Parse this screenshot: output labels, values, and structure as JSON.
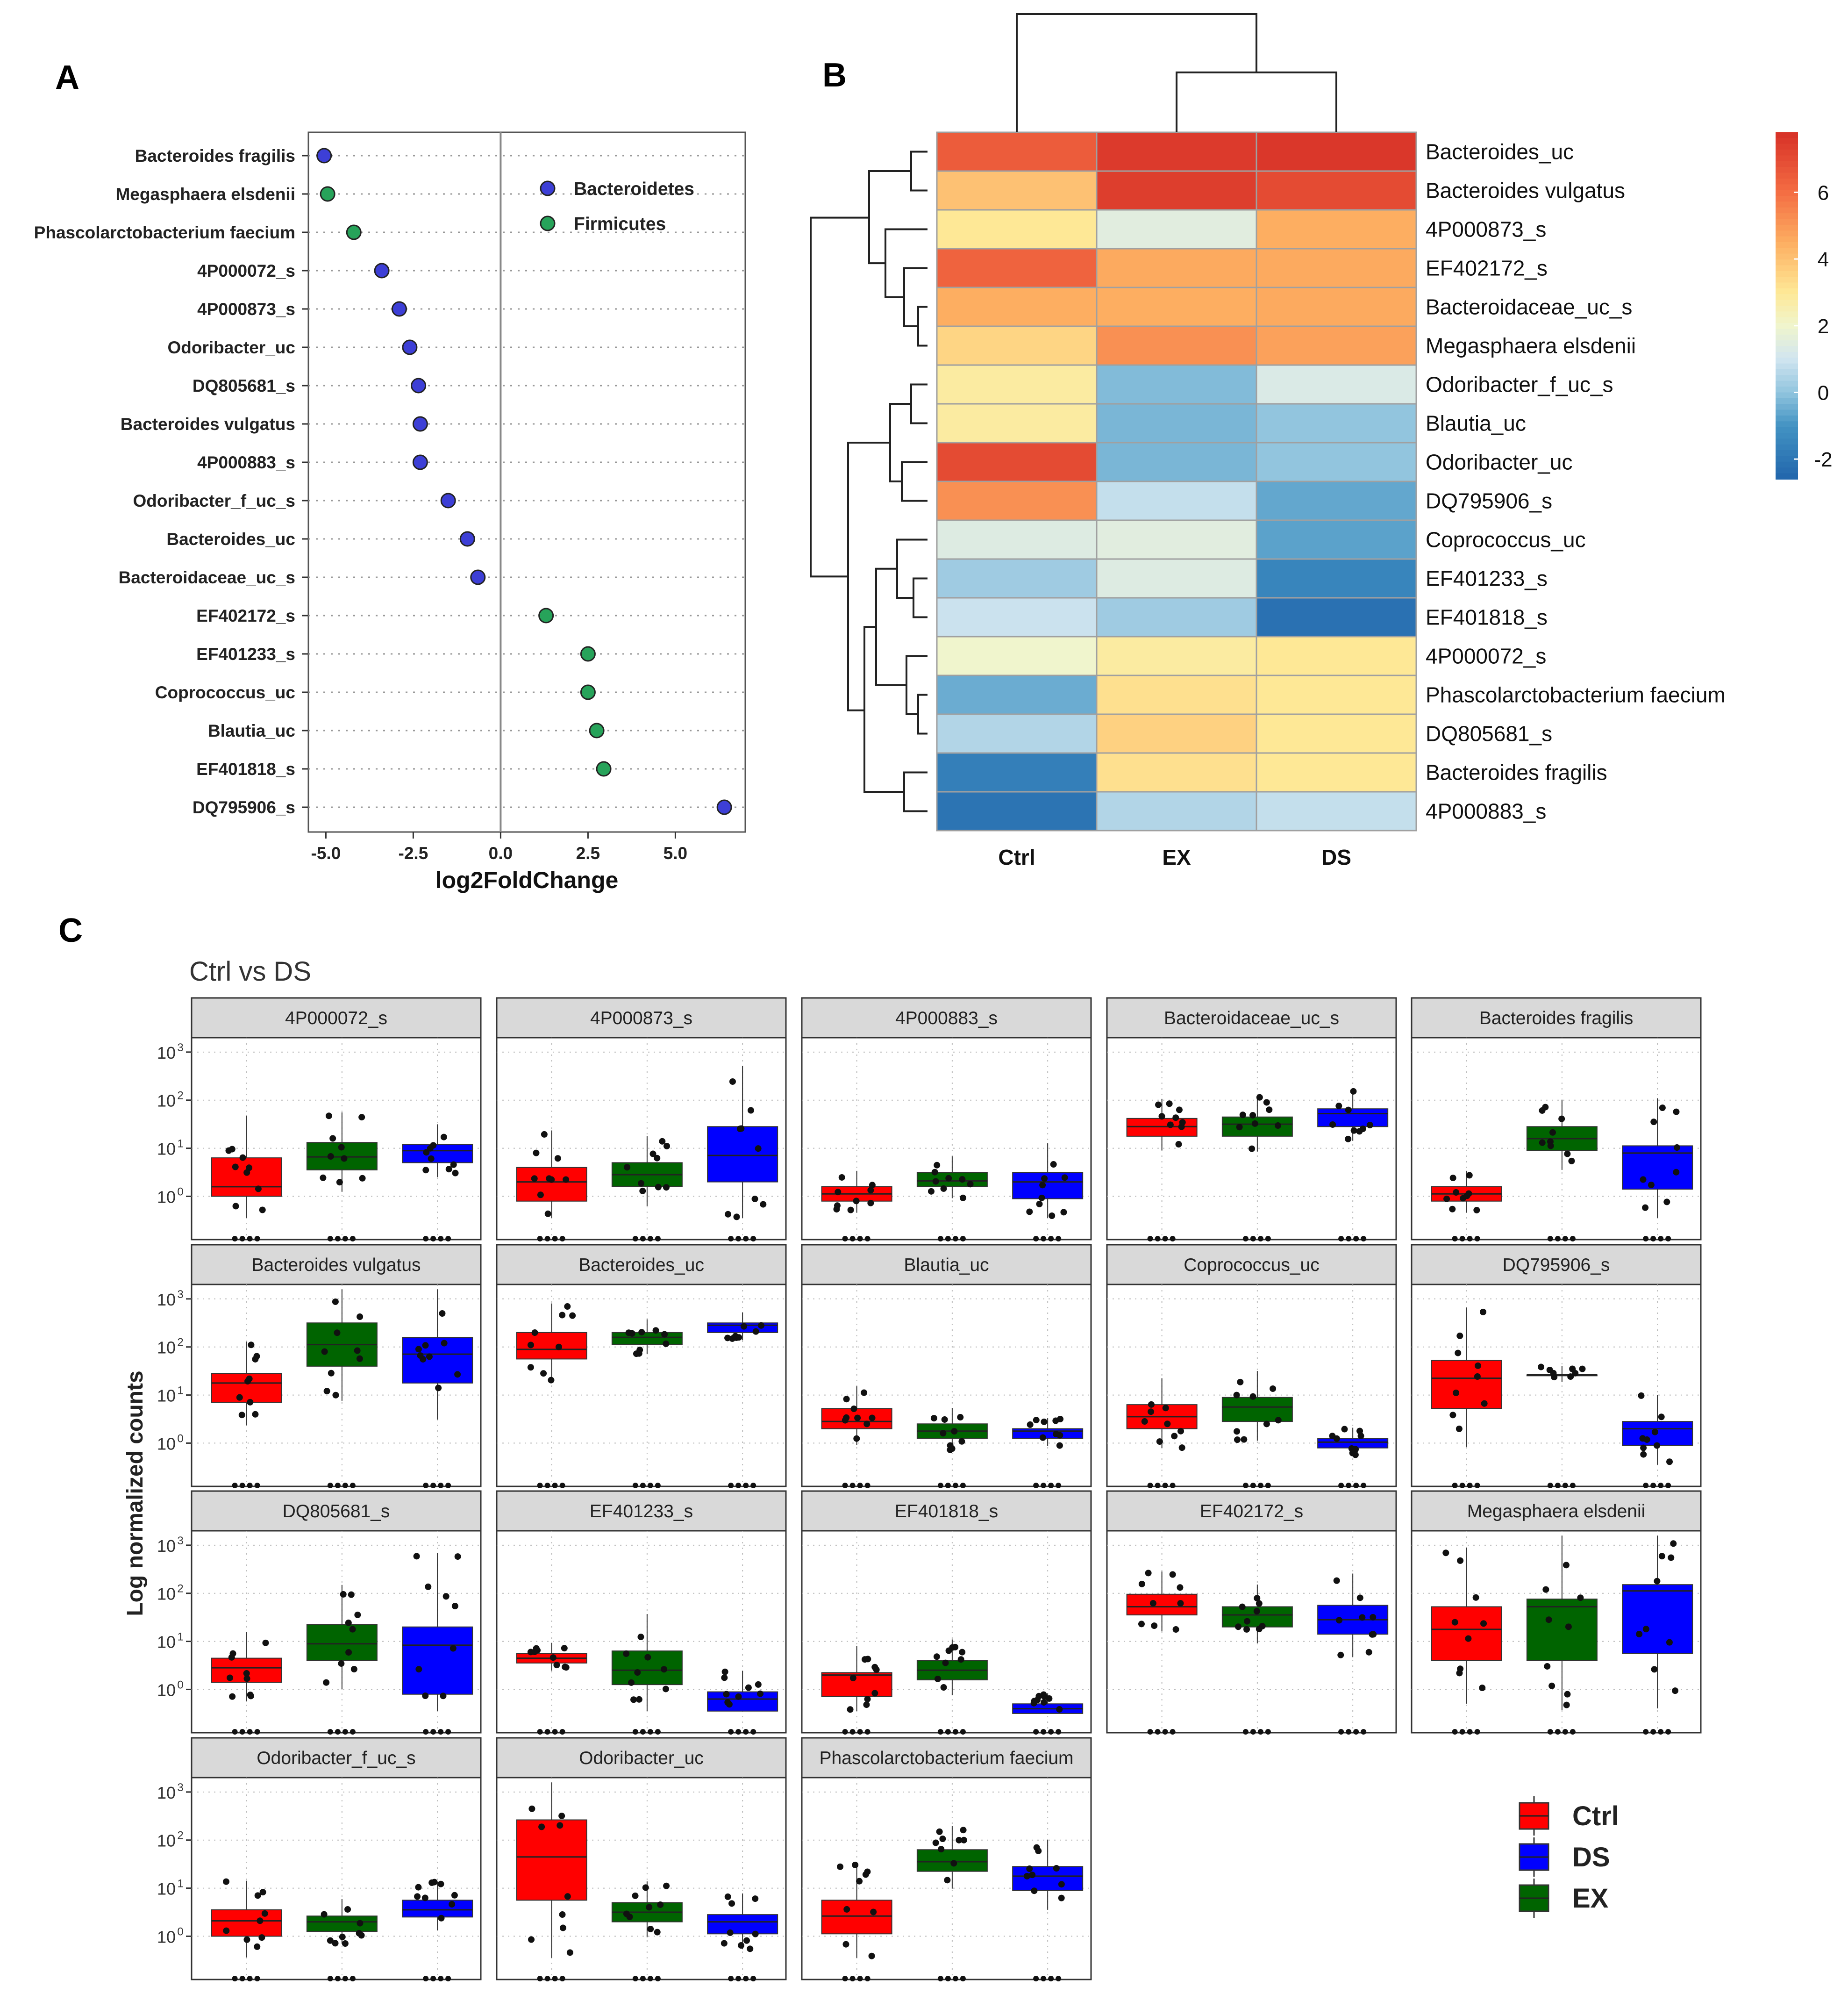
{
  "chart_data": [
    {
      "panel": "A",
      "type": "scatter",
      "title": "",
      "xlabel": "log2FoldChange",
      "ylabel": "",
      "xlim": [
        -5.5,
        7.0
      ],
      "xticks": [
        "-5.0",
        "-2.5",
        "0.0",
        "2.5",
        "5.0"
      ],
      "xtick_values": [
        -5.0,
        -2.5,
        0.0,
        2.5,
        5.0
      ],
      "legend": [
        {
          "label": "Bacteroidetes",
          "color": "#3d3fd6"
        },
        {
          "label": "Firmicutes",
          "color": "#27a35a"
        }
      ],
      "points": [
        {
          "label": "Bacteroides fragilis",
          "x": -5.05,
          "group": "Bacteroidetes"
        },
        {
          "label": "Megasphaera elsdenii",
          "x": -4.95,
          "group": "Firmicutes"
        },
        {
          "label": "Phascolarctobacterium faecium",
          "x": -4.2,
          "group": "Firmicutes"
        },
        {
          "label": "4P000072_s",
          "x": -3.4,
          "group": "Bacteroidetes"
        },
        {
          "label": "4P000873_s",
          "x": -2.9,
          "group": "Bacteroidetes"
        },
        {
          "label": "Odoribacter_uc",
          "x": -2.6,
          "group": "Bacteroidetes"
        },
        {
          "label": "DQ805681_s",
          "x": -2.35,
          "group": "Bacteroidetes"
        },
        {
          "label": "Bacteroides vulgatus",
          "x": -2.3,
          "group": "Bacteroidetes"
        },
        {
          "label": "4P000883_s",
          "x": -2.3,
          "group": "Bacteroidetes"
        },
        {
          "label": "Odoribacter_f_uc_s",
          "x": -1.5,
          "group": "Bacteroidetes"
        },
        {
          "label": "Bacteroides_uc",
          "x": -0.95,
          "group": "Bacteroidetes"
        },
        {
          "label": "Bacteroidaceae_uc_s",
          "x": -0.65,
          "group": "Bacteroidetes"
        },
        {
          "label": "EF402172_s",
          "x": 1.3,
          "group": "Firmicutes"
        },
        {
          "label": "EF401233_s",
          "x": 2.5,
          "group": "Firmicutes"
        },
        {
          "label": "Coprococcus_uc",
          "x": 2.5,
          "group": "Firmicutes"
        },
        {
          "label": "Blautia_uc",
          "x": 2.75,
          "group": "Firmicutes"
        },
        {
          "label": "EF401818_s",
          "x": 2.95,
          "group": "Firmicutes"
        },
        {
          "label": "DQ795906_s",
          "x": 6.4,
          "group": "Bacteroidetes"
        }
      ]
    },
    {
      "panel": "B",
      "type": "heatmap",
      "columns": [
        "Ctrl",
        "EX",
        "DS"
      ],
      "rows": [
        "Bacteroides_uc",
        "Bacteroides vulgatus",
        "4P000873_s",
        "EF402172_s",
        "Bacteroidaceae_uc_s",
        "Megasphaera elsdenii",
        "Odoribacter_f_uc_s",
        "Blautia_uc",
        "Odoribacter_uc",
        "DQ795906_s",
        "Coprococcus_uc",
        "EF401233_s",
        "EF401818_s",
        "4P000072_s",
        "Phascolarctobacterium faecium",
        "DQ805681_s",
        "Bacteroides fragilis",
        "4P000883_s"
      ],
      "values": [
        [
          6.5,
          7.5,
          7.6
        ],
        [
          4.0,
          7.4,
          7.0
        ],
        [
          3.0,
          1.5,
          4.5
        ],
        [
          6.3,
          4.6,
          4.6
        ],
        [
          4.5,
          4.5,
          4.6
        ],
        [
          3.5,
          5.2,
          4.8
        ],
        [
          2.8,
          -0.2,
          1.3
        ],
        [
          2.8,
          -0.3,
          0.0
        ],
        [
          7.0,
          -0.3,
          0.0
        ],
        [
          5.2,
          0.8,
          -0.6
        ],
        [
          1.4,
          1.5,
          -0.7
        ],
        [
          0.2,
          1.4,
          -1.5
        ],
        [
          0.9,
          0.2,
          -2.2
        ],
        [
          2.0,
          2.8,
          3.0
        ],
        [
          -0.5,
          3.2,
          3.0
        ],
        [
          0.5,
          3.6,
          3.0
        ],
        [
          -1.7,
          3.2,
          3.0
        ],
        [
          -2.1,
          0.5,
          0.8
        ]
      ],
      "colorbar_ticks": [
        "6",
        "4",
        "2",
        "0",
        "-2"
      ],
      "colorbar_tick_values": [
        6,
        4,
        2,
        0,
        -2
      ],
      "colorbar_range": [
        -2.6,
        7.8
      ]
    },
    {
      "panel": "C",
      "type": "box",
      "title": "Ctrl vs DS",
      "ylabel": "Log normalized counts",
      "yscale": "log10",
      "ylim_log10": [
        -0.9,
        3.3
      ],
      "ytick_exponents": [
        "3",
        "2",
        "1",
        "0"
      ],
      "ytick_base": "10",
      "groups": [
        "Ctrl",
        "EX",
        "DS"
      ],
      "group_colors": {
        "Ctrl": "#ff0000",
        "EX": "#006400",
        "DS": "#0000ff"
      },
      "legend": [
        "Ctrl",
        "DS",
        "EX"
      ],
      "facets": [
        {
          "title": "4P000072_s",
          "boxes": [
            {
              "q1": 0.0,
              "med": 0.2,
              "q3": 0.8
            },
            {
              "q1": 0.55,
              "med": 0.82,
              "q3": 1.12
            },
            {
              "q1": 0.7,
              "med": 0.95,
              "q3": 1.08
            }
          ]
        },
        {
          "title": "4P000873_s",
          "boxes": [
            {
              "q1": -0.1,
              "med": 0.3,
              "q3": 0.6
            },
            {
              "q1": 0.2,
              "med": 0.45,
              "q3": 0.7
            },
            {
              "q1": 0.3,
              "med": 0.85,
              "q3": 1.45
            }
          ]
        },
        {
          "title": "4P000883_s",
          "boxes": [
            {
              "q1": -0.1,
              "med": 0.05,
              "q3": 0.2
            },
            {
              "q1": 0.2,
              "med": 0.32,
              "q3": 0.5
            },
            {
              "q1": -0.05,
              "med": 0.3,
              "q3": 0.5
            }
          ]
        },
        {
          "title": "Bacteroidaceae_uc_s",
          "boxes": [
            {
              "q1": 1.25,
              "med": 1.45,
              "q3": 1.62
            },
            {
              "q1": 1.25,
              "med": 1.5,
              "q3": 1.65
            },
            {
              "q1": 1.45,
              "med": 1.72,
              "q3": 1.82
            }
          ]
        },
        {
          "title": "Bacteroides fragilis",
          "boxes": [
            {
              "q1": -0.1,
              "med": 0.05,
              "q3": 0.2
            },
            {
              "q1": 0.95,
              "med": 1.2,
              "q3": 1.45
            },
            {
              "q1": 0.15,
              "med": 0.9,
              "q3": 1.05
            }
          ]
        },
        {
          "title": "Bacteroides vulgatus",
          "boxes": [
            {
              "q1": 0.85,
              "med": 1.25,
              "q3": 1.45
            },
            {
              "q1": 1.6,
              "med": 2.05,
              "q3": 2.5
            },
            {
              "q1": 1.25,
              "med": 1.85,
              "q3": 2.2
            }
          ]
        },
        {
          "title": "Bacteroides_uc",
          "boxes": [
            {
              "q1": 1.75,
              "med": 1.95,
              "q3": 2.3
            },
            {
              "q1": 2.05,
              "med": 2.2,
              "q3": 2.3
            },
            {
              "q1": 2.3,
              "med": 2.45,
              "q3": 2.5
            }
          ]
        },
        {
          "title": "Blautia_uc",
          "boxes": [
            {
              "q1": 0.3,
              "med": 0.45,
              "q3": 0.72
            },
            {
              "q1": 0.1,
              "med": 0.25,
              "q3": 0.4
            },
            {
              "q1": 0.1,
              "med": 0.25,
              "q3": 0.3
            }
          ]
        },
        {
          "title": "Coprococcus_uc",
          "boxes": [
            {
              "q1": 0.3,
              "med": 0.55,
              "q3": 0.8
            },
            {
              "q1": 0.45,
              "med": 0.75,
              "q3": 0.95
            },
            {
              "q1": -0.1,
              "med": 0.02,
              "q3": 0.1
            }
          ]
        },
        {
          "title": "DQ795906_s",
          "boxes": [
            {
              "q1": 0.72,
              "med": 1.35,
              "q3": 1.72
            },
            {
              "q1": 1.42,
              "med": 1.42,
              "q3": 1.42
            },
            {
              "q1": -0.05,
              "med": 0.3,
              "q3": 0.45
            }
          ]
        },
        {
          "title": "DQ805681_s",
          "boxes": [
            {
              "q1": 0.15,
              "med": 0.45,
              "q3": 0.65
            },
            {
              "q1": 0.6,
              "med": 0.95,
              "q3": 1.35
            },
            {
              "q1": -0.1,
              "med": 0.92,
              "q3": 1.3
            }
          ]
        },
        {
          "title": "EF401233_s",
          "boxes": [
            {
              "q1": 0.55,
              "med": 0.65,
              "q3": 0.75
            },
            {
              "q1": 0.1,
              "med": 0.4,
              "q3": 0.8
            },
            {
              "q1": -0.45,
              "med": -0.2,
              "q3": -0.05
            }
          ]
        },
        {
          "title": "EF401818_s",
          "boxes": [
            {
              "q1": -0.15,
              "med": 0.3,
              "q3": 0.35
            },
            {
              "q1": 0.2,
              "med": 0.4,
              "q3": 0.6
            },
            {
              "q1": -0.5,
              "med": -0.4,
              "q3": -0.3
            }
          ]
        },
        {
          "title": "EF402172_s",
          "boxes": [
            {
              "q1": 1.55,
              "med": 1.72,
              "q3": 1.98
            },
            {
              "q1": 1.3,
              "med": 1.55,
              "q3": 1.72
            },
            {
              "q1": 1.15,
              "med": 1.45,
              "q3": 1.75
            }
          ]
        },
        {
          "title": "Megasphaera elsdenii",
          "boxes": [
            {
              "q1": 0.6,
              "med": 1.25,
              "q3": 1.72
            },
            {
              "q1": 0.6,
              "med": 1.72,
              "q3": 1.88
            },
            {
              "q1": 0.75,
              "med": 2.05,
              "q3": 2.18
            }
          ]
        },
        {
          "title": "Odoribacter_f_uc_s",
          "boxes": [
            {
              "q1": 0.0,
              "med": 0.32,
              "q3": 0.55
            },
            {
              "q1": 0.1,
              "med": 0.3,
              "q3": 0.42
            },
            {
              "q1": 0.4,
              "med": 0.55,
              "q3": 0.75
            }
          ]
        },
        {
          "title": "Odoribacter_uc",
          "boxes": [
            {
              "q1": 0.75,
              "med": 1.65,
              "q3": 2.42
            },
            {
              "q1": 0.3,
              "med": 0.5,
              "q3": 0.7
            },
            {
              "q1": 0.05,
              "med": 0.3,
              "q3": 0.45
            }
          ]
        },
        {
          "title": "Phascolarctobacterium faecium",
          "boxes": [
            {
              "q1": 0.05,
              "med": 0.42,
              "q3": 0.75
            },
            {
              "q1": 1.35,
              "med": 1.55,
              "q3": 1.8
            },
            {
              "q1": 0.95,
              "med": 1.25,
              "q3": 1.45
            }
          ]
        }
      ]
    }
  ],
  "panel_labels": {
    "a": "A",
    "b": "B",
    "c": "C"
  },
  "colors": {
    "bacteroidetes": "#3d3fd6",
    "firmicutes": "#27a35a",
    "ctrl": "#ff0000",
    "ex": "#006400",
    "ds": "#0000ff",
    "strip_bg": "#d9d9d9"
  }
}
